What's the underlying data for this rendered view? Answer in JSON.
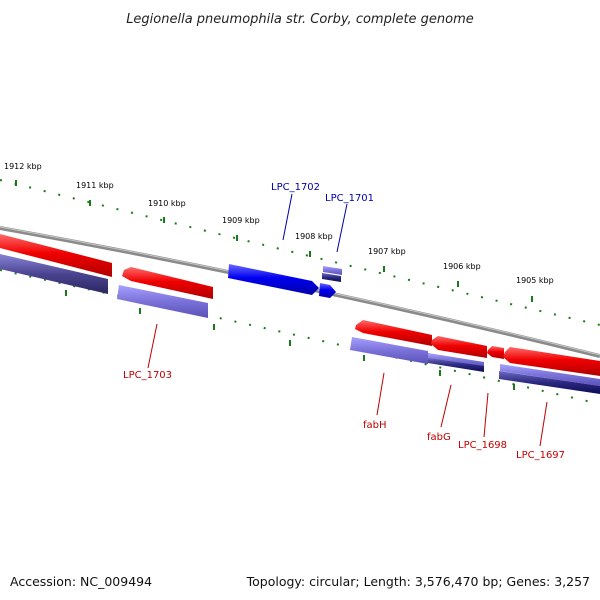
{
  "title": "Legionella pneumophila str. Corby, complete genome",
  "footer": {
    "accession": "Accession: NC_009494",
    "summary": "Topology: circular; Length: 3,576,470 bp; Genes: 3,257"
  },
  "colors": {
    "forward_cds": "#e00000",
    "reverse_cds": "#7a72d8",
    "reverse_cds_dark": "#10106a",
    "highlight_cds": "#0a0aee",
    "backbone": "#888888",
    "ticks": "#1a7a1a",
    "label_blue": "#0000aa",
    "label_red": "#c00000"
  },
  "scale_ticks": [
    "1912 kbp",
    "1911 kbp",
    "1910 kbp",
    "1909 kbp",
    "1908 kbp",
    "1907 kbp",
    "1906 kbp",
    "1905 kbp"
  ],
  "genes": [
    {
      "label": "LPC_1702",
      "color": "label_blue"
    },
    {
      "label": "LPC_1701",
      "color": "label_blue"
    },
    {
      "label": "LPC_1703",
      "color": "label_red"
    },
    {
      "label": "fabH",
      "color": "label_red"
    },
    {
      "label": "fabG",
      "color": "label_red"
    },
    {
      "label": "LPC_1698",
      "color": "label_red"
    },
    {
      "label": "LPC_1697",
      "color": "label_red"
    }
  ]
}
